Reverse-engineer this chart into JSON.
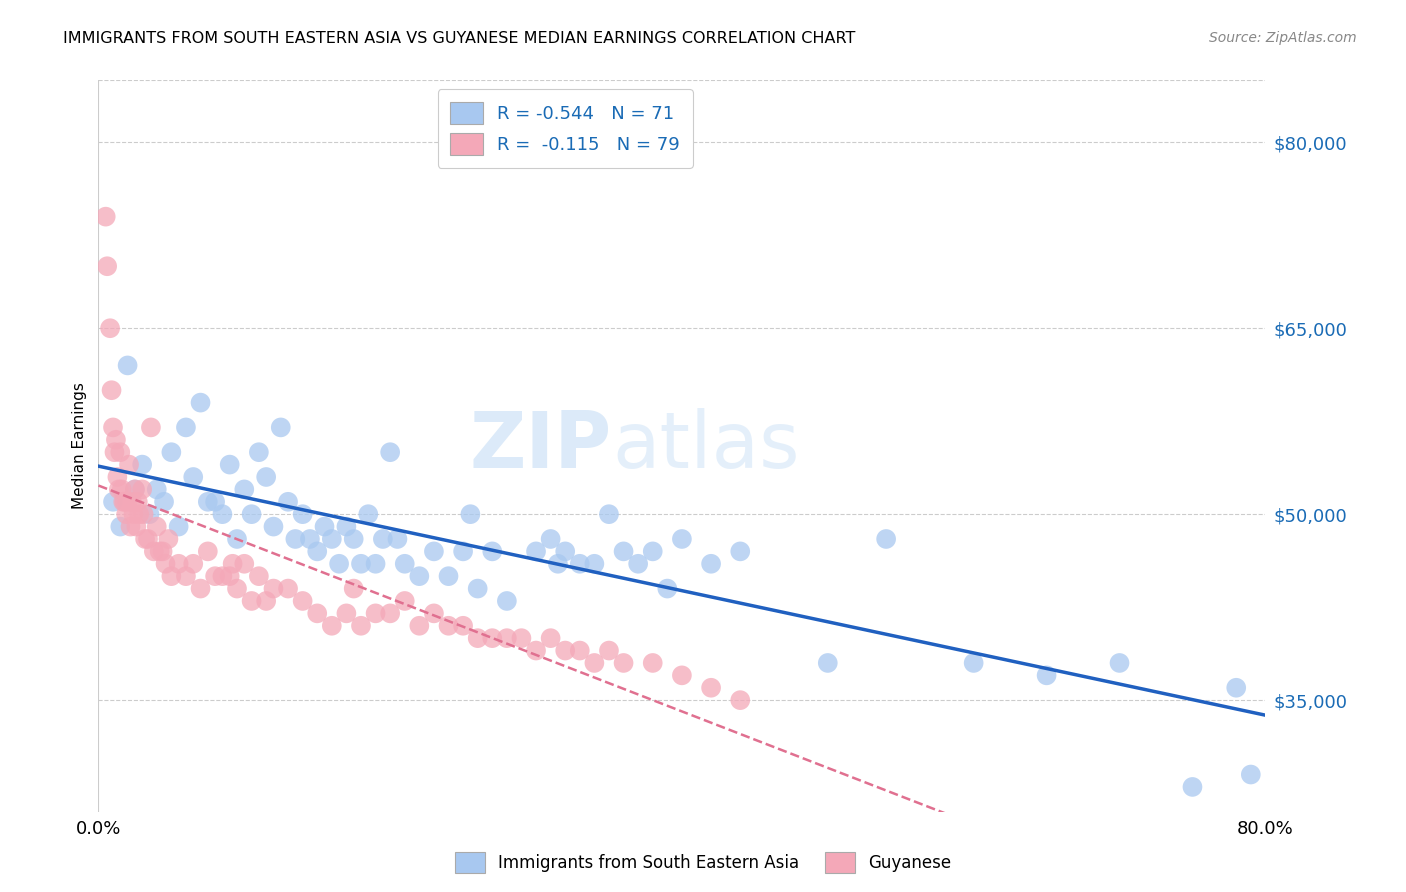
{
  "title": "IMMIGRANTS FROM SOUTH EASTERN ASIA VS GUYANESE MEDIAN EARNINGS CORRELATION CHART",
  "source": "Source: ZipAtlas.com",
  "ylabel": "Median Earnings",
  "watermark": "ZIPatlas",
  "ytick_labels": [
    "$35,000",
    "$50,000",
    "$65,000",
    "$80,000"
  ],
  "ytick_values": [
    35000,
    50000,
    65000,
    80000
  ],
  "ylim": [
    26000,
    85000
  ],
  "xlim": [
    0.0,
    0.8
  ],
  "blue_R": "-0.544",
  "blue_N": "71",
  "pink_R": "-0.115",
  "pink_N": "79",
  "blue_color": "#a8c8f0",
  "pink_color": "#f4a8b8",
  "blue_line_color": "#2060c0",
  "pink_line_color": "#e07090",
  "grid_color": "#cccccc",
  "blue_scatter_x": [
    0.01,
    0.015,
    0.02,
    0.025,
    0.03,
    0.035,
    0.04,
    0.045,
    0.05,
    0.055,
    0.06,
    0.065,
    0.07,
    0.075,
    0.08,
    0.085,
    0.09,
    0.095,
    0.1,
    0.105,
    0.11,
    0.115,
    0.12,
    0.125,
    0.13,
    0.135,
    0.14,
    0.145,
    0.15,
    0.155,
    0.16,
    0.165,
    0.17,
    0.175,
    0.18,
    0.185,
    0.19,
    0.195,
    0.2,
    0.205,
    0.21,
    0.22,
    0.23,
    0.24,
    0.25,
    0.255,
    0.26,
    0.27,
    0.28,
    0.3,
    0.31,
    0.315,
    0.32,
    0.33,
    0.34,
    0.35,
    0.36,
    0.37,
    0.38,
    0.39,
    0.4,
    0.42,
    0.44,
    0.5,
    0.54,
    0.6,
    0.65,
    0.7,
    0.75,
    0.78,
    0.79
  ],
  "blue_scatter_y": [
    51000,
    49000,
    62000,
    52000,
    54000,
    50000,
    52000,
    51000,
    55000,
    49000,
    57000,
    53000,
    59000,
    51000,
    51000,
    50000,
    54000,
    48000,
    52000,
    50000,
    55000,
    53000,
    49000,
    57000,
    51000,
    48000,
    50000,
    48000,
    47000,
    49000,
    48000,
    46000,
    49000,
    48000,
    46000,
    50000,
    46000,
    48000,
    55000,
    48000,
    46000,
    45000,
    47000,
    45000,
    47000,
    50000,
    44000,
    47000,
    43000,
    47000,
    48000,
    46000,
    47000,
    46000,
    46000,
    50000,
    47000,
    46000,
    47000,
    44000,
    48000,
    46000,
    47000,
    38000,
    48000,
    38000,
    37000,
    38000,
    28000,
    36000,
    29000
  ],
  "pink_scatter_x": [
    0.005,
    0.006,
    0.008,
    0.009,
    0.01,
    0.011,
    0.012,
    0.013,
    0.014,
    0.015,
    0.016,
    0.017,
    0.018,
    0.019,
    0.02,
    0.021,
    0.022,
    0.023,
    0.024,
    0.025,
    0.026,
    0.027,
    0.028,
    0.03,
    0.031,
    0.032,
    0.034,
    0.036,
    0.038,
    0.04,
    0.042,
    0.044,
    0.046,
    0.048,
    0.05,
    0.055,
    0.06,
    0.065,
    0.07,
    0.075,
    0.08,
    0.085,
    0.09,
    0.092,
    0.095,
    0.1,
    0.105,
    0.11,
    0.115,
    0.12,
    0.13,
    0.14,
    0.15,
    0.16,
    0.17,
    0.175,
    0.18,
    0.19,
    0.2,
    0.21,
    0.22,
    0.23,
    0.24,
    0.25,
    0.26,
    0.27,
    0.28,
    0.29,
    0.3,
    0.31,
    0.32,
    0.33,
    0.34,
    0.35,
    0.36,
    0.38,
    0.4,
    0.42,
    0.44
  ],
  "pink_scatter_y": [
    74000,
    70000,
    65000,
    60000,
    57000,
    55000,
    56000,
    53000,
    52000,
    55000,
    52000,
    51000,
    51000,
    50000,
    51000,
    54000,
    49000,
    51000,
    50000,
    52000,
    49000,
    51000,
    50000,
    52000,
    50000,
    48000,
    48000,
    57000,
    47000,
    49000,
    47000,
    47000,
    46000,
    48000,
    45000,
    46000,
    45000,
    46000,
    44000,
    47000,
    45000,
    45000,
    45000,
    46000,
    44000,
    46000,
    43000,
    45000,
    43000,
    44000,
    44000,
    43000,
    42000,
    41000,
    42000,
    44000,
    41000,
    42000,
    42000,
    43000,
    41000,
    42000,
    41000,
    41000,
    40000,
    40000,
    40000,
    40000,
    39000,
    40000,
    39000,
    39000,
    38000,
    39000,
    38000,
    38000,
    37000,
    36000,
    35000
  ]
}
